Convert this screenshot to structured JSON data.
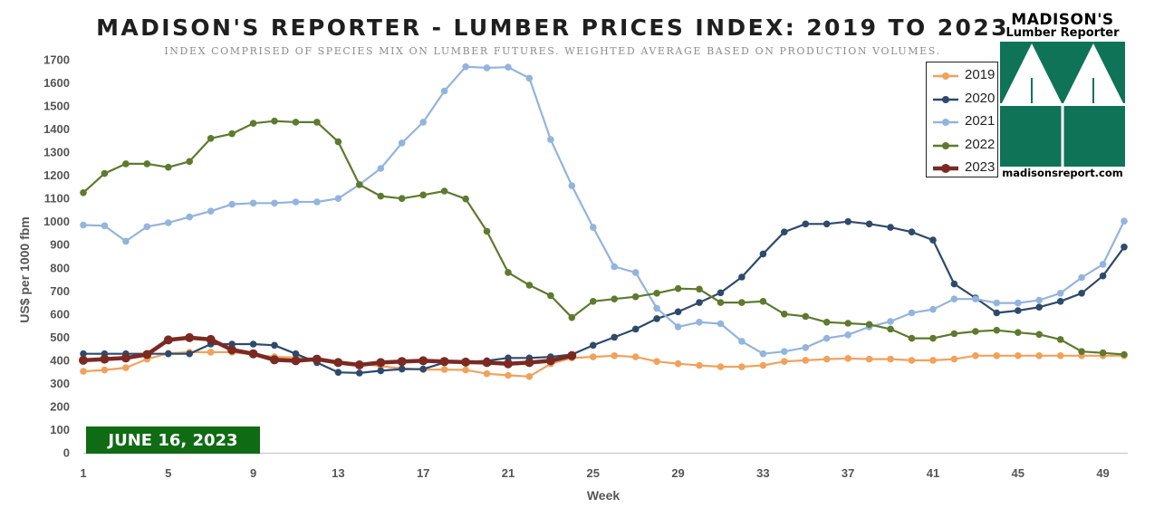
{
  "title": "MADISON'S REPORTER - LUMBER PRICES INDEX: 2019 TO 2023",
  "subtitle": "INDEX COMPRISED OF SPECIES MIX ON LUMBER FUTURES. WEIGHTED AVERAGE BASED ON PRODUCTION VOLUMES.",
  "date_badge": "JUNE 16, 2023",
  "logo": {
    "name": "MADISON'S",
    "tagline": "Lumber Reporter",
    "url": "madisonsreport.com",
    "icon": "tree-triangles-logo-icon",
    "color": "#0f7358"
  },
  "chart_data": {
    "type": "line",
    "title": "MADISON'S REPORTER - LUMBER PRICES INDEX: 2019 TO 2023",
    "xlabel": "Week",
    "ylabel": "US$ per 1000 fbm",
    "xlim": [
      1,
      50
    ],
    "ylim": [
      0,
      1700
    ],
    "x_ticks": [
      1,
      5,
      9,
      13,
      17,
      21,
      25,
      29,
      33,
      37,
      41,
      45,
      49
    ],
    "y_ticks": [
      0,
      100,
      200,
      300,
      400,
      500,
      600,
      700,
      800,
      900,
      1000,
      1100,
      1200,
      1300,
      1400,
      1500,
      1600,
      1700
    ],
    "grid": false,
    "legend_position": "top-right",
    "series": [
      {
        "name": "2019",
        "color": "#f0a25c",
        "values": [
          352,
          358,
          368,
          405,
          430,
          435,
          435,
          435,
          425,
          415,
          412,
          405,
          395,
          385,
          375,
          365,
          360,
          360,
          358,
          342,
          335,
          330,
          385,
          410,
          415,
          420,
          415,
          395,
          385,
          378,
          372,
          372,
          378,
          395,
          400,
          405,
          408,
          405,
          405,
          400,
          400,
          405,
          420,
          420,
          420,
          420,
          420,
          420,
          420,
          420
        ]
      },
      {
        "name": "2020",
        "color": "#2e4a6b",
        "values": [
          428,
          428,
          428,
          428,
          428,
          428,
          470,
          470,
          470,
          465,
          428,
          390,
          348,
          345,
          355,
          362,
          362,
          390,
          392,
          398,
          410,
          410,
          415,
          425,
          465,
          500,
          535,
          580,
          610,
          650,
          692,
          760,
          860,
          955,
          990,
          990,
          1000,
          990,
          975,
          955,
          920,
          730,
          670,
          605,
          615,
          630,
          655,
          690,
          765,
          890
        ]
      },
      {
        "name": "2021",
        "color": "#93b4dc",
        "values": [
          985,
          982,
          915,
          978,
          995,
          1020,
          1045,
          1075,
          1080,
          1080,
          1085,
          1085,
          1100,
          1160,
          1230,
          1340,
          1430,
          1565,
          1670,
          1665,
          1668,
          1620,
          1355,
          1155,
          975,
          805,
          780,
          625,
          545,
          565,
          558,
          482,
          428,
          438,
          455,
          495,
          510,
          545,
          568,
          605,
          620,
          665,
          665,
          648,
          648,
          660,
          690,
          758,
          815,
          1002
        ]
      },
      {
        "name": "2022",
        "color": "#5e7a2e",
        "values": [
          1125,
          1208,
          1250,
          1250,
          1235,
          1260,
          1360,
          1380,
          1425,
          1435,
          1430,
          1430,
          1345,
          1160,
          1110,
          1100,
          1115,
          1132,
          1098,
          958,
          780,
          725,
          680,
          585,
          655,
          665,
          675,
          690,
          710,
          708,
          650,
          650,
          655,
          600,
          590,
          565,
          560,
          555,
          535,
          495,
          495,
          515,
          525,
          530,
          520,
          512,
          490,
          438,
          432,
          425
        ]
      },
      {
        "name": "2023",
        "color": "#7b2a22",
        "values": [
          400,
          405,
          410,
          425,
          488,
          498,
          490,
          445,
          428,
          402,
          398,
          405,
          390,
          380,
          390,
          395,
          398,
          395,
          392,
          390,
          385,
          390,
          398,
          420
        ]
      }
    ]
  }
}
